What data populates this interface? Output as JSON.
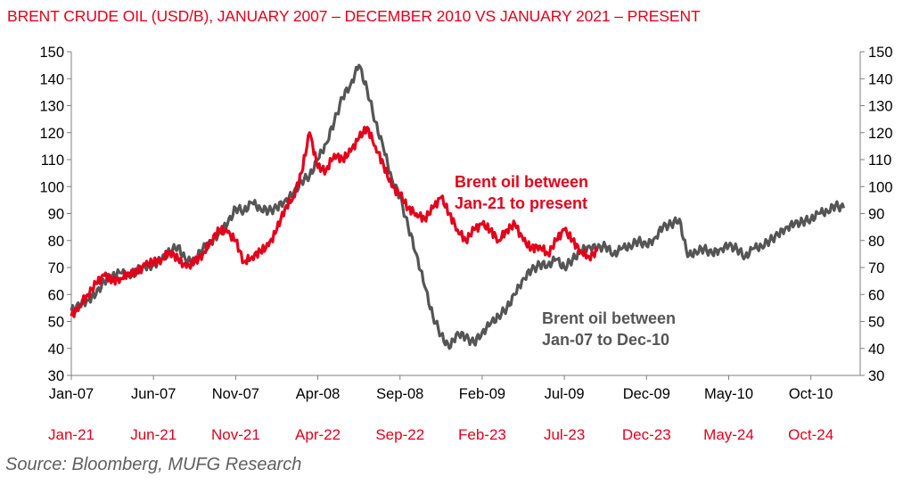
{
  "title": "BRENT CRUDE OIL (USD/B), JANUARY 2007 – DECEMBER 2010 VS JANUARY 2021 – PRESENT",
  "source": "Source: Bloomberg, MUFG Research",
  "chart_data": {
    "type": "line",
    "title": "BRENT CRUDE OIL (USD/B), JANUARY 2007 – DECEMBER 2010 VS JANUARY 2021 – PRESENT",
    "ylim": [
      30,
      150
    ],
    "y_ticks": [
      30,
      40,
      50,
      60,
      70,
      80,
      90,
      100,
      110,
      120,
      130,
      140,
      150
    ],
    "x_months": 48,
    "x_ticks_primary": [
      "Jan-07",
      "Jun-07",
      "Nov-07",
      "Apr-08",
      "Sep-08",
      "Feb-09",
      "Jul-09",
      "Dec-09",
      "May-10",
      "Oct-10"
    ],
    "x_ticks_secondary": [
      "Jan-21",
      "Jun-21",
      "Nov-21",
      "Apr-22",
      "Sep-22",
      "Feb-23",
      "Jul-23",
      "Dec-23",
      "May-24",
      "Oct-24"
    ],
    "secondary_axis": "right, same scale",
    "grid": false,
    "annotations": [
      {
        "text_lines": [
          "Brent oil between",
          "Jan-21 to present"
        ],
        "color": "#e3001b",
        "series": 1
      },
      {
        "text_lines": [
          "Brent oil between",
          "Jan-07 to Dec-10"
        ],
        "color": "#555555",
        "series": 0
      }
    ],
    "series": [
      {
        "name": "Brent oil between Jan-07 to Dec-10",
        "color": "#555555",
        "points": [
          [
            0,
            54
          ],
          [
            0.5,
            56
          ],
          [
            1,
            58
          ],
          [
            1.5,
            60
          ],
          [
            2,
            65
          ],
          [
            2.5,
            67
          ],
          [
            3,
            68
          ],
          [
            3.5,
            67
          ],
          [
            4,
            69
          ],
          [
            4.5,
            70
          ],
          [
            5,
            71
          ],
          [
            5.5,
            73
          ],
          [
            6,
            76
          ],
          [
            6.5,
            78
          ],
          [
            7,
            72
          ],
          [
            7.5,
            73
          ],
          [
            8,
            77
          ],
          [
            8.5,
            79
          ],
          [
            9,
            83
          ],
          [
            9.5,
            86
          ],
          [
            10,
            92
          ],
          [
            10.5,
            91
          ],
          [
            11,
            94
          ],
          [
            11.5,
            92
          ],
          [
            12,
            91
          ],
          [
            12.5,
            92
          ],
          [
            13,
            95
          ],
          [
            13.5,
            97
          ],
          [
            14,
            102
          ],
          [
            14.5,
            104
          ],
          [
            15,
            110
          ],
          [
            15.5,
            116
          ],
          [
            16,
            124
          ],
          [
            16.5,
            133
          ],
          [
            17,
            138
          ],
          [
            17.5,
            145
          ],
          [
            18,
            136
          ],
          [
            18.5,
            124
          ],
          [
            19,
            114
          ],
          [
            19.5,
            103
          ],
          [
            20,
            96
          ],
          [
            20.5,
            85
          ],
          [
            21,
            75
          ],
          [
            21.5,
            63
          ],
          [
            22,
            52
          ],
          [
            22.5,
            45
          ],
          [
            23,
            40
          ],
          [
            23.5,
            46
          ],
          [
            24,
            44
          ],
          [
            24.5,
            42
          ],
          [
            25,
            46
          ],
          [
            25.5,
            49
          ],
          [
            26,
            52
          ],
          [
            26.5,
            55
          ],
          [
            27,
            60
          ],
          [
            27.5,
            66
          ],
          [
            28,
            69
          ],
          [
            28.5,
            71
          ],
          [
            29,
            71
          ],
          [
            29.5,
            73
          ],
          [
            30,
            70
          ],
          [
            30.5,
            73
          ],
          [
            31,
            76
          ],
          [
            31.5,
            78
          ],
          [
            32,
            77
          ],
          [
            32.5,
            78
          ],
          [
            33,
            75
          ],
          [
            33.5,
            77
          ],
          [
            34,
            78
          ],
          [
            34.5,
            80
          ],
          [
            35,
            78
          ],
          [
            35.5,
            81
          ],
          [
            36,
            85
          ],
          [
            36.5,
            86
          ],
          [
            37,
            88
          ],
          [
            37.5,
            74
          ],
          [
            38,
            76
          ],
          [
            38.5,
            77
          ],
          [
            39,
            75
          ],
          [
            39.5,
            77
          ],
          [
            40,
            78
          ],
          [
            40.5,
            77
          ],
          [
            41,
            74
          ],
          [
            41.5,
            77
          ],
          [
            42,
            78
          ],
          [
            42.5,
            80
          ],
          [
            43,
            82
          ],
          [
            43.5,
            85
          ],
          [
            44,
            86
          ],
          [
            44.5,
            87
          ],
          [
            45,
            88
          ],
          [
            45.5,
            90
          ],
          [
            46,
            91
          ],
          [
            46.5,
            93
          ],
          [
            47,
            92
          ]
        ]
      },
      {
        "name": "Brent oil between Jan-21 to present",
        "color": "#e3001b",
        "points": [
          [
            0,
            52
          ],
          [
            0.5,
            56
          ],
          [
            1,
            60
          ],
          [
            1.5,
            64
          ],
          [
            2,
            67
          ],
          [
            2.5,
            65
          ],
          [
            3,
            66
          ],
          [
            3.5,
            68
          ],
          [
            4,
            68
          ],
          [
            4.5,
            71
          ],
          [
            5,
            72
          ],
          [
            5.5,
            73
          ],
          [
            6,
            76
          ],
          [
            6.5,
            73
          ],
          [
            7,
            70
          ],
          [
            7.5,
            72
          ],
          [
            8,
            75
          ],
          [
            8.5,
            80
          ],
          [
            9,
            84
          ],
          [
            9.5,
            83
          ],
          [
            10,
            80
          ],
          [
            10.5,
            72
          ],
          [
            11,
            74
          ],
          [
            11.5,
            76
          ],
          [
            12,
            78
          ],
          [
            12.5,
            84
          ],
          [
            13,
            92
          ],
          [
            13.5,
            96
          ],
          [
            14,
            105
          ],
          [
            14.5,
            120
          ],
          [
            15,
            107
          ],
          [
            15.5,
            106
          ],
          [
            16,
            112
          ],
          [
            16.5,
            110
          ],
          [
            17,
            113
          ],
          [
            17.5,
            118
          ],
          [
            18,
            122
          ],
          [
            18.5,
            115
          ],
          [
            19,
            108
          ],
          [
            19.5,
            100
          ],
          [
            20,
            97
          ],
          [
            20.5,
            92
          ],
          [
            21,
            90
          ],
          [
            21.5,
            88
          ],
          [
            22,
            92
          ],
          [
            22.5,
            96
          ],
          [
            23,
            90
          ],
          [
            23.5,
            84
          ],
          [
            24,
            80
          ],
          [
            24.5,
            84
          ],
          [
            25,
            86
          ],
          [
            25.5,
            84
          ],
          [
            26,
            80
          ],
          [
            26.5,
            84
          ],
          [
            27,
            86
          ],
          [
            27.5,
            80
          ],
          [
            28,
            77
          ],
          [
            28.5,
            78
          ],
          [
            29,
            75
          ],
          [
            29.5,
            80
          ],
          [
            30,
            84
          ],
          [
            30.5,
            80
          ],
          [
            31,
            76
          ],
          [
            31.5,
            74
          ],
          [
            32,
            76
          ]
        ]
      }
    ]
  }
}
